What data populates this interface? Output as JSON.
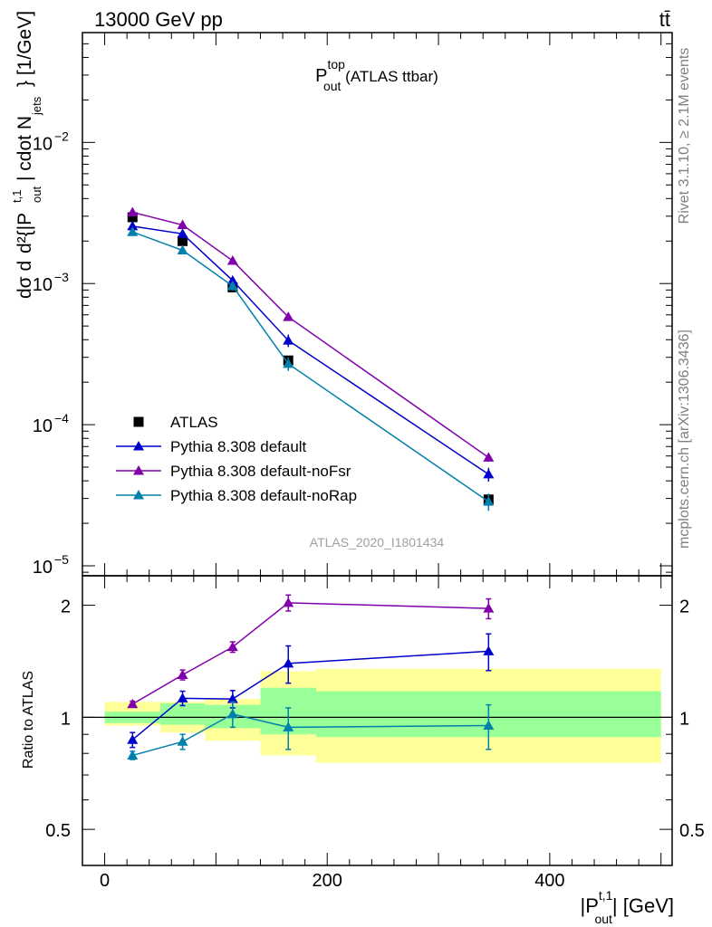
{
  "header": {
    "energy_label": "13000 GeV pp",
    "process_label": "tt̄"
  },
  "side_labels": {
    "rivet": "Rivet 3.1.10, ≥ 2.1M events",
    "mcplots": "mcplots.cern.ch [arXiv:1306.3436]"
  },
  "analysis_id": "ATLAS_2020_I1801434",
  "colors": {
    "atlas": "#000000",
    "default": "#0000cc",
    "noFsr": "#8000aa",
    "noRap": "#0080aa",
    "band_inner": "#99ff99",
    "band_outer": "#ffff99"
  },
  "chart_data": [
    {
      "type": "scatter",
      "panel": "main",
      "title": {
        "main": "P",
        "sup": "top",
        "sub": "out",
        "suffix": " (ATLAS ttbar)"
      },
      "ylabel": "d¹d/σ d²{|P_out^t,1| cdot N_jets} / dσ^nnd  } [1/GeV]",
      "yscale": "log",
      "ylim": [
        8.5e-06,
        0.06
      ],
      "xlim": [
        -20,
        510
      ],
      "ytick_labels": [
        {
          "value": 0.01,
          "base": "10",
          "exp": "−2"
        },
        {
          "value": 0.001,
          "base": "10",
          "exp": "−3"
        },
        {
          "value": 0.0001,
          "base": "10",
          "exp": "−4"
        },
        {
          "value": 1e-05,
          "base": "10",
          "exp": "−5"
        }
      ],
      "legend_position": "lower-left",
      "series": [
        {
          "name": "ATLAS",
          "marker": "square",
          "color": "#000000",
          "line": false,
          "points": [
            {
              "x": 25,
              "y": 0.00295
            },
            {
              "x": 70,
              "y": 0.002
            },
            {
              "x": 115,
              "y": 0.00094
            },
            {
              "x": 165,
              "y": 0.000285
            },
            {
              "x": 345,
              "y": 2.95e-05
            }
          ],
          "xerr": [
            [
              0,
              50
            ],
            [
              50,
              90
            ],
            [
              90,
              140
            ],
            [
              140,
              190
            ],
            [
              190,
              500
            ]
          ]
        },
        {
          "name": "Pythia 8.308 default",
          "marker": "triangle",
          "color": "#0000cc",
          "line": true,
          "points": [
            {
              "x": 25,
              "y": 0.00255,
              "err": 0.00012
            },
            {
              "x": 70,
              "y": 0.00225,
              "err": 0.0001
            },
            {
              "x": 115,
              "y": 0.00105,
              "err": 7e-05
            },
            {
              "x": 165,
              "y": 0.000395,
              "err": 4e-05
            },
            {
              "x": 345,
              "y": 4.45e-05,
              "err": 5e-06
            }
          ]
        },
        {
          "name": "Pythia 8.308 default-noFsr",
          "marker": "triangle",
          "color": "#8000aa",
          "line": true,
          "points": [
            {
              "x": 25,
              "y": 0.0032,
              "err": 0.0001
            },
            {
              "x": 70,
              "y": 0.0026,
              "err": 8e-05
            },
            {
              "x": 115,
              "y": 0.00145,
              "err": 6e-05
            },
            {
              "x": 165,
              "y": 0.00058,
              "err": 3e-05
            },
            {
              "x": 345,
              "y": 5.85e-05,
              "err": 4e-06
            }
          ]
        },
        {
          "name": "Pythia 8.308 default-noRap",
          "marker": "triangle",
          "color": "#0080aa",
          "line": true,
          "points": [
            {
              "x": 25,
              "y": 0.00232,
              "err": 0.0001
            },
            {
              "x": 70,
              "y": 0.00172,
              "err": 9e-05
            },
            {
              "x": 115,
              "y": 0.00096,
              "err": 7e-05
            },
            {
              "x": 165,
              "y": 0.00027,
              "err": 3e-05
            },
            {
              "x": 345,
              "y": 2.85e-05,
              "err": 4e-06
            }
          ]
        }
      ]
    },
    {
      "type": "line",
      "panel": "ratio",
      "ylabel": "Ratio to ATLAS",
      "xlabel": {
        "main": "|P",
        "sup": "t,1",
        "sub": "out",
        "suffix": "| [GeV]"
      },
      "yscale": "log",
      "ylim": [
        0.4,
        2.4
      ],
      "xlim": [
        -20,
        510
      ],
      "xticks": [
        0,
        200,
        400
      ],
      "yticks": [
        0.5,
        1,
        2
      ],
      "bands": [
        {
          "x0": 0,
          "x1": 50,
          "inner": [
            0.965,
            1.035
          ],
          "outer": [
            0.95,
            1.1
          ]
        },
        {
          "x0": 50,
          "x1": 90,
          "inner": [
            0.955,
            1.09
          ],
          "outer": [
            0.91,
            1.1
          ]
        },
        {
          "x0": 90,
          "x1": 140,
          "inner": [
            0.935,
            1.08
          ],
          "outer": [
            0.865,
            1.12
          ]
        },
        {
          "x0": 140,
          "x1": 190,
          "inner": [
            0.9,
            1.2
          ],
          "outer": [
            0.79,
            1.33
          ]
        },
        {
          "x0": 190,
          "x1": 500,
          "inner": [
            0.885,
            1.175
          ],
          "outer": [
            0.755,
            1.35
          ]
        }
      ],
      "series": [
        {
          "name": "Pythia 8.308 default",
          "color": "#0000cc",
          "points": [
            {
              "x": 25,
              "y": 0.87,
              "err": 0.04
            },
            {
              "x": 70,
              "y": 1.125,
              "err": 0.05
            },
            {
              "x": 115,
              "y": 1.12,
              "err": 0.06
            },
            {
              "x": 165,
              "y": 1.395,
              "err": 0.16
            },
            {
              "x": 345,
              "y": 1.505,
              "err": 0.17
            }
          ]
        },
        {
          "name": "Pythia 8.308 default-noFsr",
          "color": "#8000aa",
          "points": [
            {
              "x": 25,
              "y": 1.085,
              "err": 0.02
            },
            {
              "x": 70,
              "y": 1.3,
              "err": 0.04
            },
            {
              "x": 115,
              "y": 1.545,
              "err": 0.05
            },
            {
              "x": 165,
              "y": 2.03,
              "err": 0.1
            },
            {
              "x": 345,
              "y": 1.96,
              "err": 0.12
            }
          ]
        },
        {
          "name": "Pythia 8.308 default-noRap",
          "color": "#0080aa",
          "points": [
            {
              "x": 25,
              "y": 0.79,
              "err": 0.02
            },
            {
              "x": 70,
              "y": 0.86,
              "err": 0.04
            },
            {
              "x": 115,
              "y": 1.02,
              "err": 0.08
            },
            {
              "x": 165,
              "y": 0.94,
              "err": 0.12
            },
            {
              "x": 345,
              "y": 0.95,
              "err": 0.13
            }
          ]
        }
      ]
    }
  ]
}
